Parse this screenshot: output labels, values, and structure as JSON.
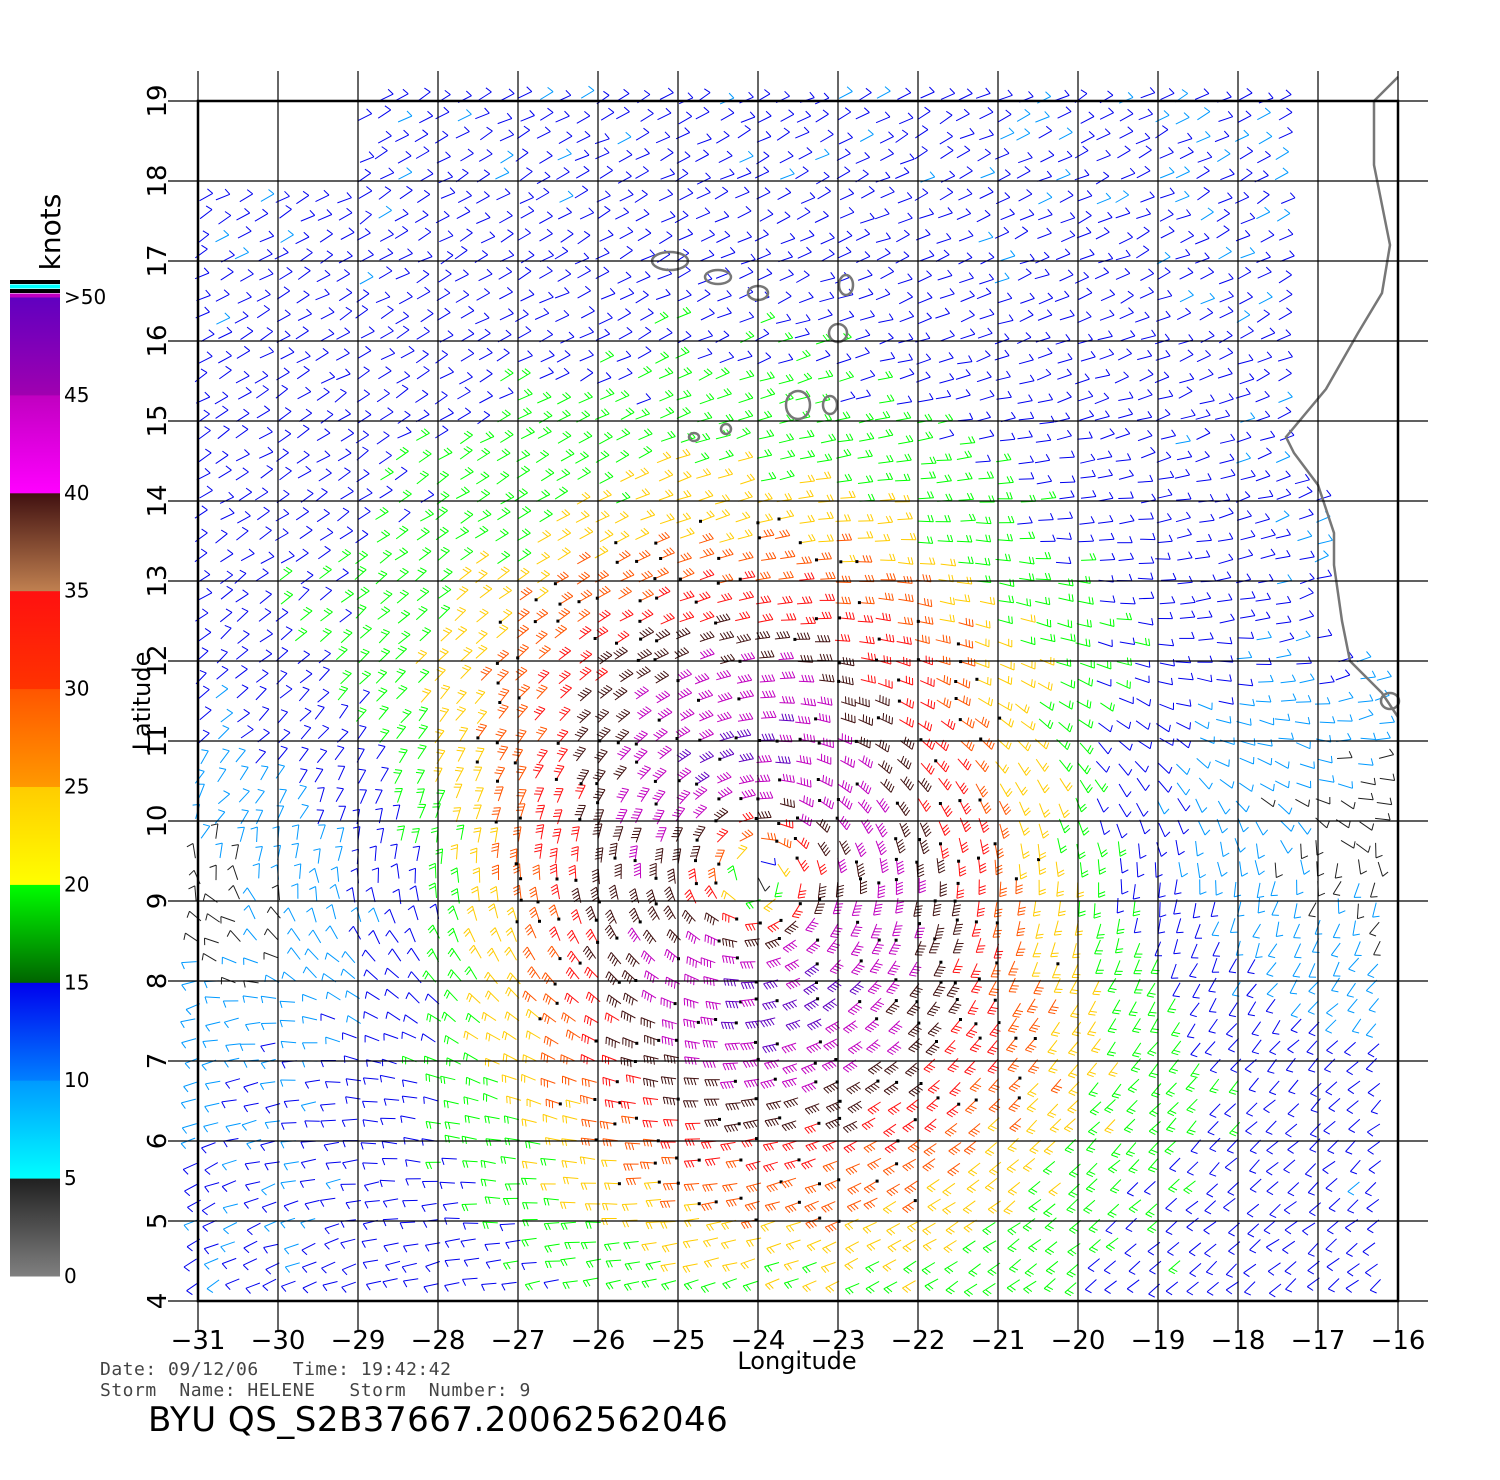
{
  "map": {
    "projection": "lat-lon",
    "lon_range": [
      -31,
      -16
    ],
    "lat_range": [
      4,
      19
    ],
    "lon_ticks": [
      "−31",
      "−30",
      "−29",
      "−28",
      "−27",
      "−26",
      "−25",
      "−24",
      "−23",
      "−22",
      "−21",
      "−20",
      "−19",
      "−18",
      "−17",
      "−16"
    ],
    "lat_ticks": [
      "4",
      "5",
      "6",
      "7",
      "8",
      "9",
      "10",
      "11",
      "12",
      "13",
      "14",
      "15",
      "16",
      "17",
      "18",
      "19"
    ],
    "x_axis_title": "Longitude",
    "y_axis_title": "Latitude",
    "grid": true,
    "coastline_color": "#777777",
    "storm_center_approx": {
      "lon": -24.0,
      "lat": 9.3
    }
  },
  "legend": {
    "unit": "knots",
    "labels": [
      "0",
      "5",
      "10",
      "15",
      "20",
      "25",
      "30",
      "35",
      "40",
      "45",
      ">50"
    ],
    "bins": [
      {
        "range": "0-5",
        "colors": [
          "#808080",
          "#202020"
        ]
      },
      {
        "range": "5-10",
        "colors": [
          "#00ffff",
          "#0099ff"
        ]
      },
      {
        "range": "10-15",
        "colors": [
          "#0080ff",
          "#0000ee"
        ]
      },
      {
        "range": "15-20",
        "colors": [
          "#006400",
          "#00ff00"
        ]
      },
      {
        "range": "20-25",
        "colors": [
          "#ffff00",
          "#ffcc00"
        ]
      },
      {
        "range": "25-30",
        "colors": [
          "#ff9900",
          "#ff5500"
        ]
      },
      {
        "range": "30-35",
        "colors": [
          "#ff3300",
          "#ff1010"
        ]
      },
      {
        "range": "35-40",
        "colors": [
          "#c08050",
          "#401010"
        ]
      },
      {
        "range": "40-45",
        "colors": [
          "#ff00ff",
          "#c000c0"
        ]
      },
      {
        "range": "45-50",
        "colors": [
          "#a000b0",
          "#6000c0"
        ]
      }
    ],
    "top_stripe_colors": [
      "#000000",
      "#00ffff",
      "#000000",
      "#c000c0"
    ]
  },
  "metadata": {
    "date_line": "Date: 09/12/06   Time: 19:42:42",
    "storm_line": "Storm  Name: HELENE   Storm  Number: 9",
    "product_id": "BYU  QS_S2B37667.20062562046"
  }
}
